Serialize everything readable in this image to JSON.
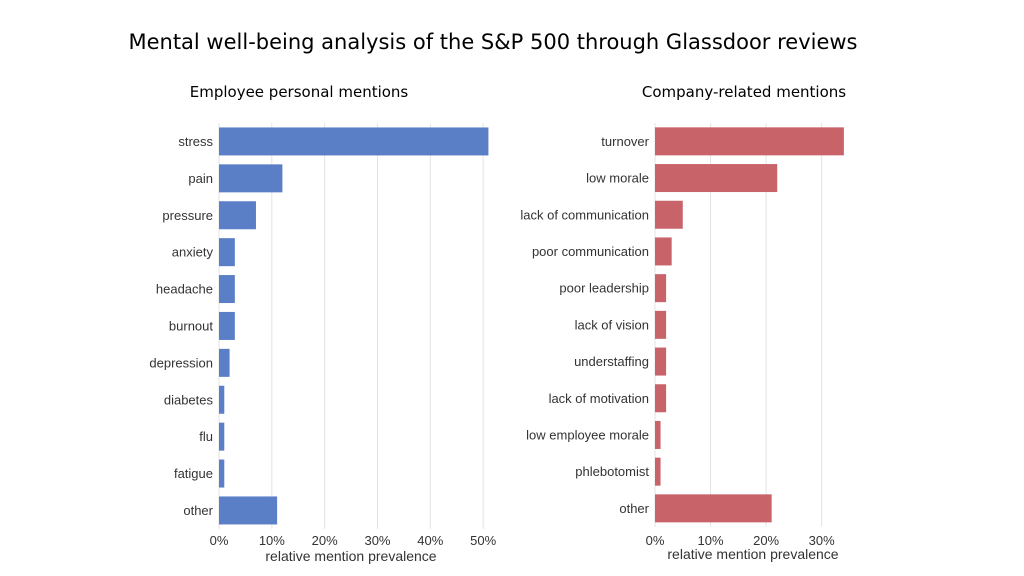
{
  "title": "Mental well-being analysis of the S&P 500 through Glassdoor reviews",
  "chart_data": [
    {
      "type": "bar",
      "orientation": "horizontal",
      "title": "Employee personal mentions",
      "categories": [
        "stress",
        "pain",
        "pressure",
        "anxiety",
        "headache",
        "burnout",
        "depression",
        "diabetes",
        "flu",
        "fatigue",
        "other"
      ],
      "values": [
        51,
        12,
        7,
        3,
        3,
        3,
        2,
        1,
        1,
        1,
        11
      ],
      "xlabel": "relative mention prevalence",
      "ylabel": "",
      "xticks": [
        0,
        10,
        20,
        30,
        40,
        50
      ],
      "xtick_labels": [
        "0%",
        "10%",
        "20%",
        "30%",
        "40%",
        "50%"
      ],
      "xlim": [
        0,
        53
      ],
      "color": "#5b7fc7",
      "grid": true
    },
    {
      "type": "bar",
      "orientation": "horizontal",
      "title": "Company-related mentions",
      "categories": [
        "turnover",
        "low morale",
        "lack of communication",
        "poor communication",
        "poor leadership",
        "lack of vision",
        "understaffing",
        "lack of motivation",
        "low employee morale",
        "phlebotomist",
        "other"
      ],
      "values": [
        34,
        22,
        5,
        3,
        2,
        2,
        2,
        2,
        1,
        1,
        21
      ],
      "xlabel": "relative mention prevalence",
      "ylabel": "",
      "xticks": [
        0,
        10,
        20,
        30
      ],
      "xtick_labels": [
        "0%",
        "10%",
        "20%",
        "30%"
      ],
      "xlim": [
        0,
        36
      ],
      "color": "#c8636a",
      "grid": true
    }
  ]
}
